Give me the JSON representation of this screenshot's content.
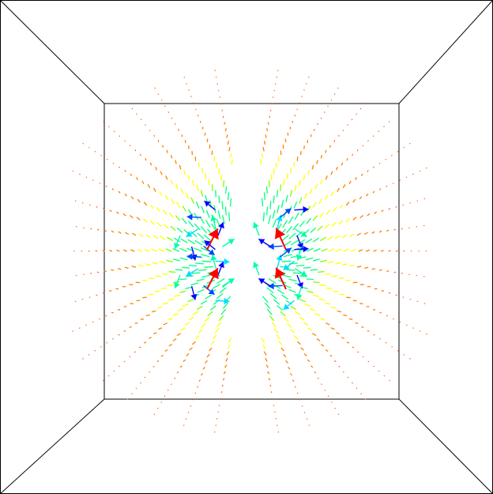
{
  "scene": {
    "description_tags": [
      "vector-field",
      "room-box-perspective",
      "quiver-plot"
    ],
    "background_color": "#ffffff",
    "frame_color": "#000000",
    "colormap": [
      "#ff0000",
      "#ff8000",
      "#ffff00",
      "#80ff00",
      "#00ff80",
      "#00ffff",
      "#0000ff"
    ],
    "arrow_clusters": [
      {
        "name": "upper-left-inner-pair",
        "colors": [
          "#ff0000",
          "#0000ff"
        ]
      },
      {
        "name": "upper-right-inner-pair",
        "colors": [
          "#ff0000",
          "#0000ff"
        ]
      },
      {
        "name": "lower-left-inner-pair",
        "colors": [
          "#ff0000",
          "#0000ff"
        ]
      },
      {
        "name": "lower-right-inner-pair",
        "colors": [
          "#ff0000",
          "#0000ff"
        ]
      }
    ]
  }
}
